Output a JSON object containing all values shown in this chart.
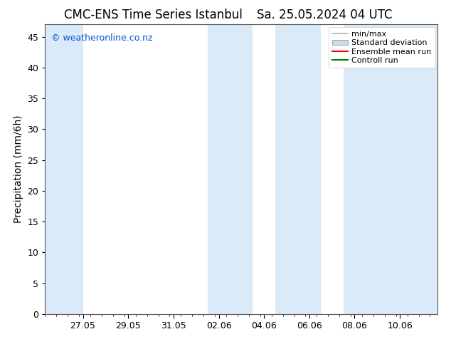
{
  "title": "CMC-ENS Time Series Istanbul",
  "title2": "Sa. 25.05.2024 04 UTC",
  "ylabel": "Precipitation (mm/6h)",
  "watermark": "© weatheronline.co.nz",
  "background_color": "#ffffff",
  "plot_bg_color": "#ffffff",
  "band_color": "#daeaf8",
  "ylim": [
    0,
    47
  ],
  "yticks": [
    0,
    5,
    10,
    15,
    20,
    25,
    30,
    35,
    40,
    45
  ],
  "xlim": [
    0,
    17.33
  ],
  "xtick_labels": [
    "27.05",
    "29.05",
    "31.05",
    "02.06",
    "04.06",
    "06.06",
    "08.06",
    "10.06"
  ],
  "xtick_positions": [
    1.67,
    3.67,
    5.67,
    7.67,
    9.67,
    11.67,
    13.67,
    15.67
  ],
  "shaded_bands": [
    [
      0.0,
      1.67
    ],
    [
      7.17,
      9.17
    ],
    [
      10.17,
      12.17
    ],
    [
      13.17,
      17.33
    ]
  ],
  "legend_items": [
    {
      "label": "min/max",
      "color": "#b0b8c0",
      "type": "errorbar"
    },
    {
      "label": "Standard deviation",
      "color": "#c8dcea",
      "type": "fill"
    },
    {
      "label": "Ensemble mean run",
      "color": "#ff0000",
      "type": "line"
    },
    {
      "label": "Controll run",
      "color": "#008000",
      "type": "line"
    }
  ],
  "title_fontsize": 12,
  "tick_fontsize": 9,
  "ylabel_fontsize": 10,
  "watermark_color": "#0055cc",
  "watermark_fontsize": 9,
  "legend_fontsize": 8
}
